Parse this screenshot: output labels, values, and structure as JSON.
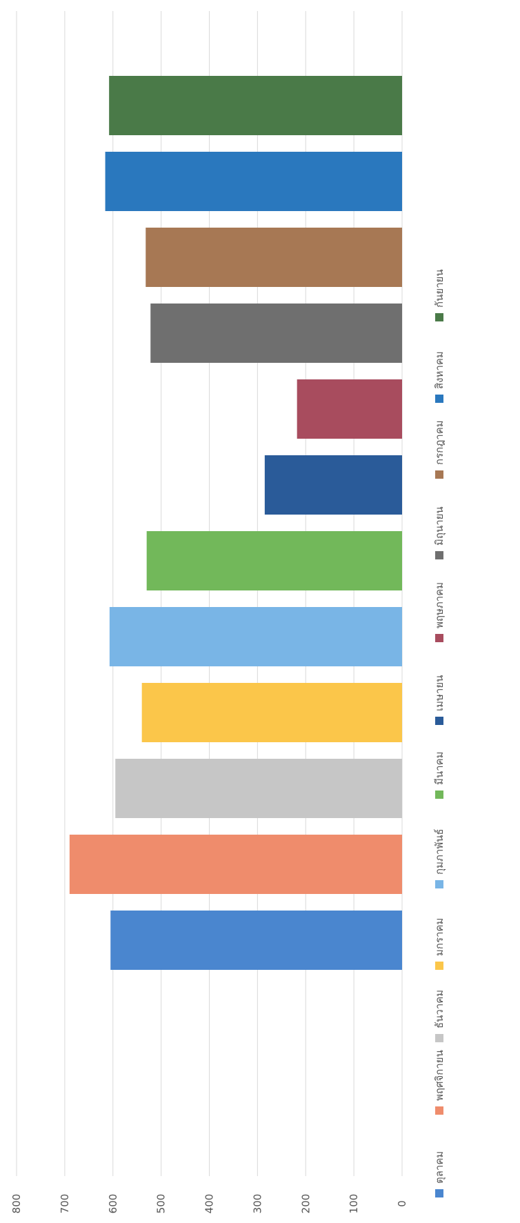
{
  "chart_data": {
    "type": "bar",
    "orientation": "vertical-bars (page rotated 90° counter-clockwise)",
    "title": "",
    "xlabel": "",
    "ylabel": "",
    "ylim": [
      0,
      800
    ],
    "yticks": [
      "0",
      "100",
      "200",
      "300",
      "400",
      "500",
      "600",
      "700",
      "800"
    ],
    "grid": true,
    "legend_position": "bottom",
    "series": [
      {
        "name": "ตุลาคม",
        "value": 605,
        "color": "#4a86cf"
      },
      {
        "name": "พฤศจิกายน",
        "value": 690,
        "color": "#ef8c6c"
      },
      {
        "name": "ธันวาคม",
        "value": 595,
        "color": "#c6c6c6"
      },
      {
        "name": "มกราคม",
        "value": 540,
        "color": "#fbc64a"
      },
      {
        "name": "กุมภาพันธ์",
        "value": 607,
        "color": "#79b5e6"
      },
      {
        "name": "มีนาคม",
        "value": 530,
        "color": "#72b85a"
      },
      {
        "name": "เมษายน",
        "value": 285,
        "color": "#2a5b99"
      },
      {
        "name": "พฤษภาคม",
        "value": 218,
        "color": "#a84c5e"
      },
      {
        "name": "มิถุนายน",
        "value": 522,
        "color": "#6f6f6f"
      },
      {
        "name": "กรกฎาคม",
        "value": 532,
        "color": "#a77854"
      },
      {
        "name": "สิงหาคม",
        "value": 616,
        "color": "#2a78be"
      },
      {
        "name": "กันยายน",
        "value": 608,
        "color": "#4a7a48"
      }
    ]
  }
}
